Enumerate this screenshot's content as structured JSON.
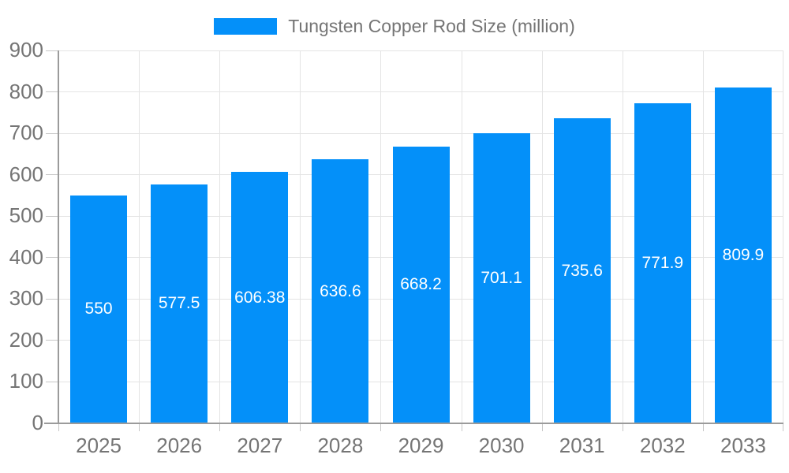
{
  "legend": {
    "label": "Tungsten Copper Rod Size (million)"
  },
  "colors": {
    "bar": "#0490f9",
    "grid": "#e4e4e4",
    "axis": "#9b9b9b",
    "tick": "#c7c7c7",
    "text": "#757575",
    "bar_label_text": "#ffffff",
    "background": "#ffffff"
  },
  "chart_data": {
    "type": "bar",
    "title": "",
    "categories": [
      "2025",
      "2026",
      "2027",
      "2028",
      "2029",
      "2030",
      "2031",
      "2032",
      "2033"
    ],
    "series": [
      {
        "name": "Tungsten Copper Rod Size (million)",
        "values": [
          550,
          577.5,
          606.38,
          636.6,
          668.2,
          701.1,
          735.6,
          771.9,
          809.9
        ]
      }
    ],
    "value_labels": [
      "550",
      "577.5",
      "606.38",
      "636.6",
      "668.2",
      "701.1",
      "735.6",
      "771.9",
      "809.9"
    ],
    "xlabel": "",
    "ylabel": "",
    "ylim": [
      0,
      900
    ],
    "ytick_step": 100,
    "ytick_labels": [
      "0",
      "100",
      "200",
      "300",
      "400",
      "500",
      "600",
      "700",
      "800",
      "900"
    ],
    "grid": true,
    "legend_position": "top-center"
  }
}
